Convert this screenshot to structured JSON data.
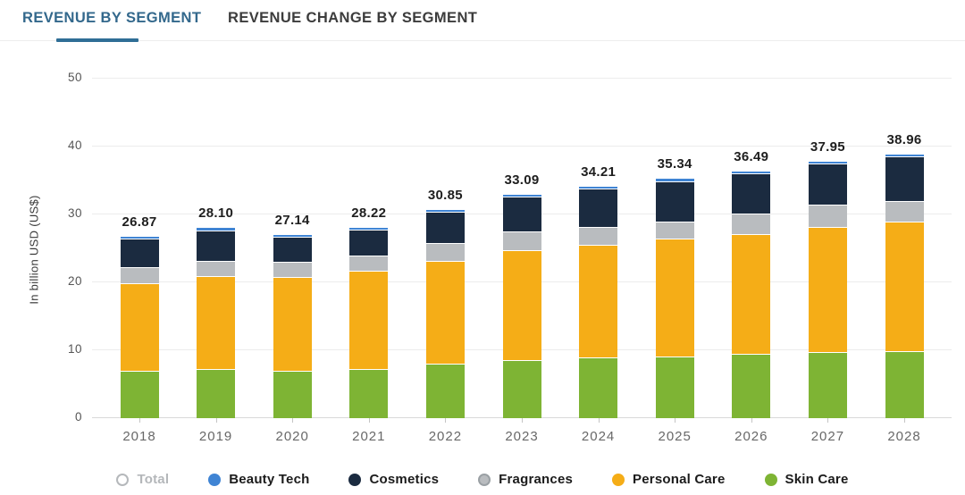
{
  "tabs": [
    {
      "label": "REVENUE BY SEGMENT",
      "active": true
    },
    {
      "label": "REVENUE CHANGE BY SEGMENT",
      "active": false
    }
  ],
  "accent_colors": {
    "active_tab": "#33688c",
    "active_tab_underline": "#2f6e96"
  },
  "chart_data": {
    "type": "bar",
    "stacked": true,
    "title": "",
    "xlabel": "",
    "ylabel": "In billion USD (US$)",
    "ylim": [
      0,
      50
    ],
    "yticks": [
      0,
      10,
      20,
      30,
      40,
      50
    ],
    "grid": true,
    "legend_position": "bottom",
    "categories": [
      "2018",
      "2019",
      "2020",
      "2021",
      "2022",
      "2023",
      "2024",
      "2025",
      "2026",
      "2027",
      "2028"
    ],
    "totals": [
      26.87,
      28.1,
      27.14,
      28.22,
      30.85,
      33.09,
      34.21,
      35.34,
      36.49,
      37.95,
      38.96
    ],
    "total_labels": [
      "26.87",
      "28.10",
      "27.14",
      "28.22",
      "30.85",
      "33.09",
      "34.21",
      "35.34",
      "36.49",
      "37.95",
      "38.96"
    ],
    "series": [
      {
        "name": "Skin Care",
        "color": "#7eb434",
        "values": [
          7.0,
          7.3,
          7.0,
          7.3,
          8.0,
          8.6,
          8.9,
          9.1,
          9.5,
          9.7,
          9.9
        ]
      },
      {
        "name": "Personal Care",
        "color": "#f5ad17",
        "values": [
          12.9,
          13.6,
          13.8,
          14.4,
          15.2,
          16.1,
          16.6,
          17.3,
          17.6,
          18.4,
          19.0
        ]
      },
      {
        "name": "Fragrances",
        "color": "#b9bcbf",
        "values": [
          2.3,
          2.3,
          2.2,
          2.2,
          2.6,
          2.8,
          2.6,
          2.6,
          3.0,
          3.3,
          3.1
        ]
      },
      {
        "name": "Cosmetics",
        "color": "#1b2b40",
        "values": [
          4.3,
          4.5,
          3.74,
          3.9,
          4.6,
          5.1,
          5.7,
          5.9,
          6.0,
          6.1,
          6.5
        ]
      },
      {
        "name": "Beauty Tech",
        "color": "#3f84d4",
        "values": [
          0.37,
          0.4,
          0.4,
          0.42,
          0.45,
          0.49,
          0.41,
          0.44,
          0.39,
          0.45,
          0.46
        ]
      }
    ],
    "legend": [
      {
        "label": "Total",
        "color": "#b5b8bb",
        "style": "ring",
        "disabled": true
      },
      {
        "label": "Beauty Tech",
        "color": "#3f84d4",
        "style": "solid",
        "disabled": false
      },
      {
        "label": "Cosmetics",
        "color": "#1b2b40",
        "style": "solid",
        "disabled": false
      },
      {
        "label": "Fragrances",
        "color": "#b9bcbf",
        "style": "grayring",
        "disabled": false
      },
      {
        "label": "Personal Care",
        "color": "#f5ad17",
        "style": "solid",
        "disabled": false
      },
      {
        "label": "Skin Care",
        "color": "#7eb434",
        "style": "solid",
        "disabled": false
      }
    ]
  }
}
